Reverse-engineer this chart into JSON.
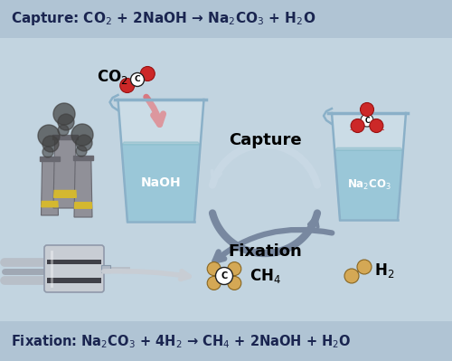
{
  "bg_color": "#c2d4e0",
  "header_bg": "#b0c4d4",
  "footer_bg": "#b0c4d4",
  "dark_blue": "#1a2550",
  "header_text": "Capture: CO$_2$ + 2NaOH → Na$_2$CO$_3$ + H$_2$O",
  "footer_text": "Fixation: Na$_2$CO$_3$ + 4H$_2$ → CH$_4$ + 2NaOH + H$_2$O",
  "capture_label": "Capture",
  "fixation_label": "Fixation",
  "naoh_label": "NaOH",
  "na2co3_label": "Na$_2$CO$_3$",
  "ch4_label": "CH$_4$",
  "h2_label": "H$_2$",
  "co2_label": "CO$_2$",
  "water_color": "#7ab5cc",
  "water_color2": "#6aaabb",
  "beaker_edge": "#8ab0c8",
  "beaker_glass": "#c8dde8",
  "red_atom": "#cc2828",
  "tan_atom": "#d4a855",
  "arrow_pink": "#d87880",
  "arrow_gray_dark": "#7888a0",
  "arrow_white": "#c8d8e4",
  "smoke_color": "#404040",
  "factory_body": "#909098",
  "factory_dark": "#686870",
  "factory_yellow": "#d4b830",
  "reactor_body": "#c8cdd4",
  "reactor_dark": "#404048"
}
